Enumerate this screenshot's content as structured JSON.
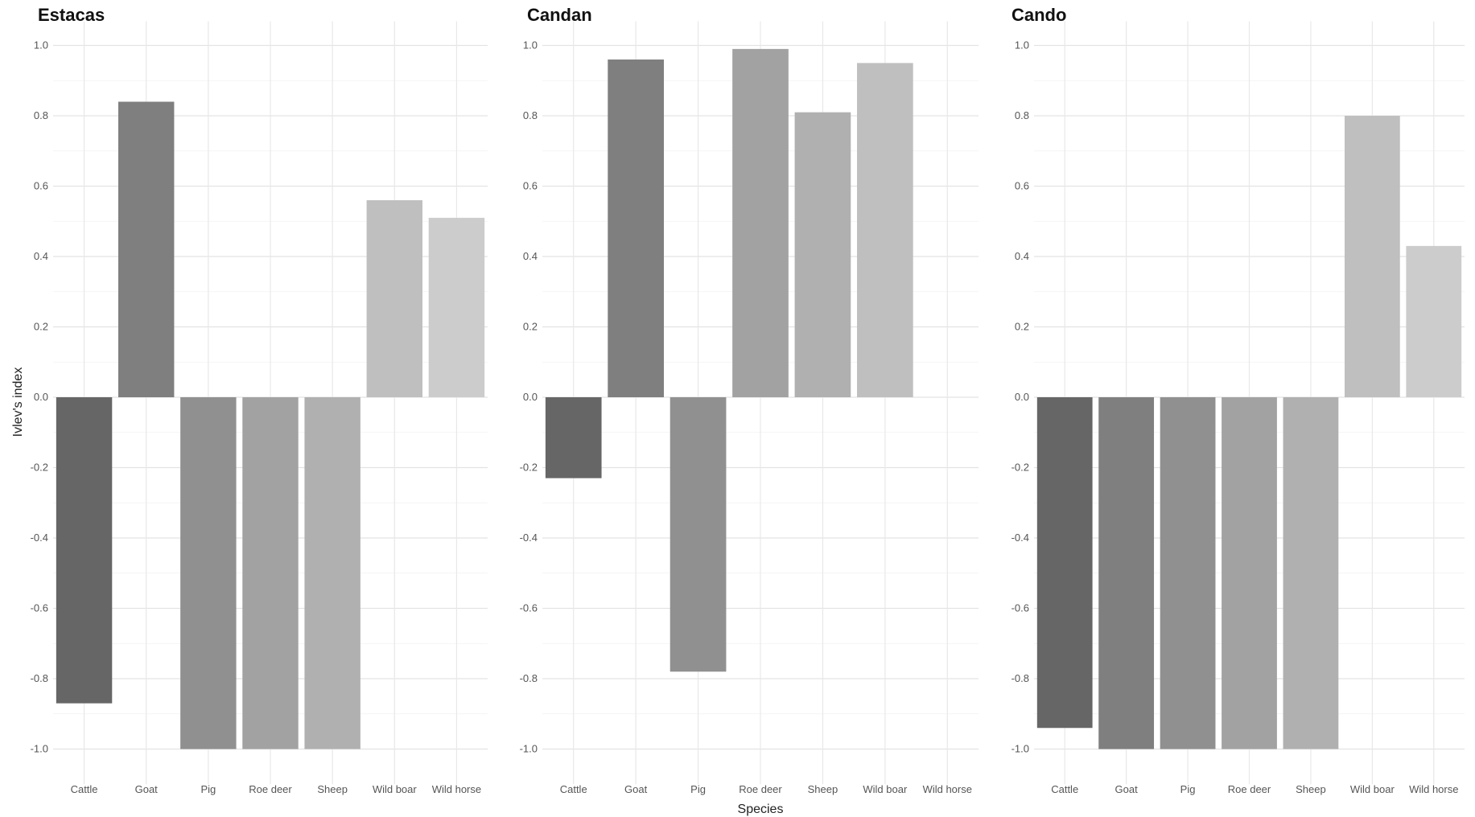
{
  "chart_data": {
    "type": "bar",
    "xlabel": "Species",
    "ylabel": "Ivlev's index",
    "ylim": [
      -1.1,
      1.0
    ],
    "yticks": [
      "1.0",
      "0.8",
      "0.6",
      "0.4",
      "0.2",
      "0.0",
      "-0.2",
      "-0.4",
      "-0.6",
      "-0.8",
      "-1.0"
    ],
    "ytick_values": [
      1.0,
      0.8,
      0.6,
      0.4,
      0.2,
      0.0,
      -0.2,
      -0.4,
      -0.6,
      -0.8,
      -1.0
    ],
    "categories": [
      "Cattle",
      "Goat",
      "Pig",
      "Roe deer",
      "Sheep",
      "Wild boar",
      "Wild horse"
    ],
    "colors": [
      "#666666",
      "#7f7f7f",
      "#909090",
      "#a2a2a2",
      "#b0b0b0",
      "#bfbfbf",
      "#cccccc"
    ],
    "grid": true,
    "panels": [
      {
        "title": "Estacas",
        "values": [
          -0.87,
          0.84,
          -1.0,
          -1.0,
          -1.0,
          0.56,
          0.51
        ]
      },
      {
        "title": "Candan",
        "values": [
          -0.23,
          0.96,
          -0.78,
          0.99,
          0.81,
          0.95,
          null
        ]
      },
      {
        "title": "Cando",
        "values": [
          -0.94,
          -1.0,
          -1.0,
          -1.0,
          -1.0,
          0.8,
          0.43
        ]
      }
    ]
  }
}
